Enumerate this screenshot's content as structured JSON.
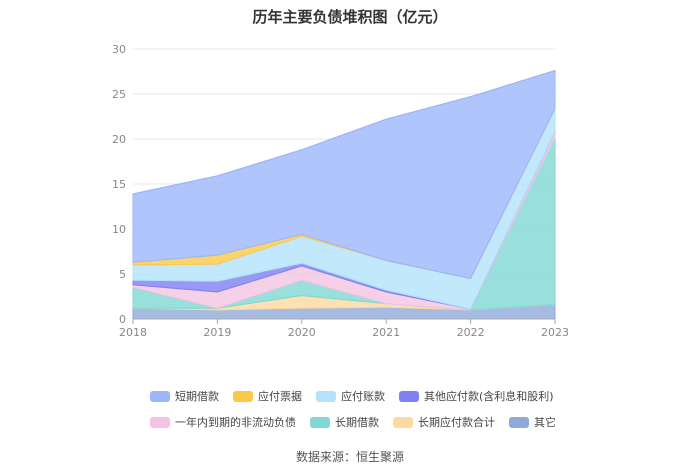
{
  "chart_data": {
    "type": "area",
    "stacked": true,
    "title": "历年主要负债堆积图（亿元）",
    "x": [
      "2018",
      "2019",
      "2020",
      "2021",
      "2022",
      "2023"
    ],
    "ylim": [
      0,
      30
    ],
    "yticks": [
      0,
      5,
      10,
      15,
      20,
      25,
      30
    ],
    "grid": true,
    "legend_position": "bottom",
    "series": [
      {
        "name": "其它",
        "color": "#8eaadb",
        "values": [
          1.2,
          1.0,
          1.2,
          1.3,
          1.0,
          1.6
        ]
      },
      {
        "name": "长期应付款合计",
        "color": "#fcd9a0",
        "values": [
          0.0,
          0.2,
          1.4,
          0.4,
          0.0,
          0.0
        ]
      },
      {
        "name": "长期借款",
        "color": "#7fd8d4",
        "values": [
          2.3,
          0.0,
          1.7,
          0.0,
          0.0,
          18.6
        ]
      },
      {
        "name": "一年内到期的非流动负债",
        "color": "#f2c4e1",
        "values": [
          0.3,
          1.8,
          1.6,
          1.3,
          0.1,
          0.6
        ]
      },
      {
        "name": "其他应付款(含利息和股利)",
        "color": "#8080f0",
        "values": [
          0.5,
          1.2,
          0.3,
          0.2,
          0.0,
          0.0
        ]
      },
      {
        "name": "应付账款",
        "color": "#b3e2fb",
        "values": [
          1.7,
          1.9,
          3.0,
          3.3,
          3.4,
          2.6
        ]
      },
      {
        "name": "应付票据",
        "color": "#fbc94a",
        "values": [
          0.3,
          1.0,
          0.2,
          0.0,
          0.0,
          0.0
        ]
      },
      {
        "name": "短期借款",
        "color": "#9cb6fb",
        "values": [
          7.6,
          8.8,
          9.4,
          15.7,
          20.2,
          4.2
        ]
      }
    ]
  },
  "legend": {
    "row1": [
      "短期借款",
      "应付票据",
      "应付账款",
      "其他应付款(含利息和股利)"
    ],
    "row2": [
      "一年内到期的非流动负债",
      "长期借款",
      "长期应付款合计",
      "其它"
    ]
  },
  "source": "数据来源：恒生聚源"
}
